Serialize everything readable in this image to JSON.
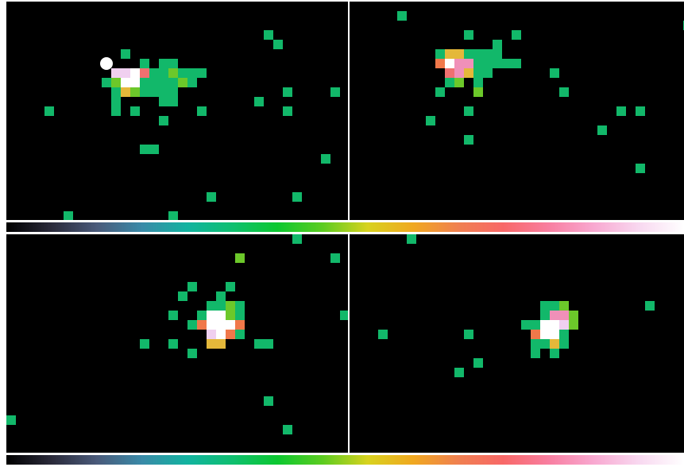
{
  "colormap": {
    "stops": [
      "#000000",
      "#2a2a3a",
      "#4a5a7a",
      "#3a8aa8",
      "#12b3a0",
      "#0fbf70",
      "#0cc830",
      "#5ccc20",
      "#d8d21f",
      "#f0a820",
      "#f08050",
      "#f86868",
      "#f87ea0",
      "#f8a8d0",
      "#f8d8f0",
      "#ffffff"
    ]
  },
  "palette": {
    "g": "#12b86a",
    "l": "#6cc82a",
    "y": "#e4b83a",
    "o": "#f0784a",
    "r": "#f07070",
    "p": "#f090b8",
    "k": "#f0d0f0",
    "w": "#ffffff"
  },
  "panels": [
    {
      "id": "top-left",
      "pixels": [
        [
          27,
          3,
          "g"
        ],
        [
          28,
          4,
          "g"
        ],
        [
          12,
          5,
          "g"
        ],
        [
          14,
          6,
          "g"
        ],
        [
          16,
          6,
          "g"
        ],
        [
          17,
          6,
          "g"
        ],
        [
          11,
          7,
          "k"
        ],
        [
          12,
          7,
          "k"
        ],
        [
          13,
          7,
          "w"
        ],
        [
          14,
          7,
          "r"
        ],
        [
          15,
          7,
          "g"
        ],
        [
          16,
          7,
          "g"
        ],
        [
          17,
          7,
          "l"
        ],
        [
          18,
          7,
          "g"
        ],
        [
          19,
          7,
          "g"
        ],
        [
          20,
          7,
          "g"
        ],
        [
          10,
          8,
          "g"
        ],
        [
          11,
          8,
          "l"
        ],
        [
          12,
          8,
          "w"
        ],
        [
          13,
          8,
          "w"
        ],
        [
          14,
          8,
          "g"
        ],
        [
          15,
          8,
          "g"
        ],
        [
          16,
          8,
          "g"
        ],
        [
          17,
          8,
          "g"
        ],
        [
          18,
          8,
          "l"
        ],
        [
          19,
          8,
          "g"
        ],
        [
          11,
          9,
          "g"
        ],
        [
          12,
          9,
          "y"
        ],
        [
          13,
          9,
          "l"
        ],
        [
          14,
          9,
          "g"
        ],
        [
          15,
          9,
          "g"
        ],
        [
          16,
          9,
          "g"
        ],
        [
          17,
          9,
          "g"
        ],
        [
          11,
          10,
          "g"
        ],
        [
          16,
          10,
          "g"
        ],
        [
          17,
          10,
          "g"
        ],
        [
          11,
          11,
          "g"
        ],
        [
          13,
          11,
          "g"
        ],
        [
          29,
          9,
          "g"
        ],
        [
          34,
          9,
          "g"
        ],
        [
          26,
          10,
          "g"
        ],
        [
          4,
          11,
          "g"
        ],
        [
          20,
          11,
          "g"
        ],
        [
          29,
          11,
          "g"
        ],
        [
          16,
          12,
          "g"
        ],
        [
          14,
          15,
          "g"
        ],
        [
          15,
          15,
          "g"
        ],
        [
          33,
          16,
          "g"
        ],
        [
          36,
          18,
          "g"
        ],
        [
          21,
          20,
          "g"
        ],
        [
          30,
          20,
          "g"
        ],
        [
          36,
          21,
          "g"
        ],
        [
          6,
          22,
          "g"
        ],
        [
          17,
          22,
          "g"
        ]
      ],
      "markers": [
        [
          10,
          6
        ]
      ]
    },
    {
      "id": "top-right",
      "pixels": [
        [
          5,
          1,
          "g"
        ],
        [
          35,
          2,
          "g"
        ],
        [
          12,
          3,
          "g"
        ],
        [
          17,
          3,
          "g"
        ],
        [
          15,
          4,
          "g"
        ],
        [
          9,
          5,
          "g"
        ],
        [
          10,
          5,
          "y"
        ],
        [
          11,
          5,
          "y"
        ],
        [
          12,
          5,
          "g"
        ],
        [
          13,
          5,
          "g"
        ],
        [
          14,
          5,
          "g"
        ],
        [
          15,
          5,
          "g"
        ],
        [
          9,
          6,
          "o"
        ],
        [
          10,
          6,
          "w"
        ],
        [
          11,
          6,
          "p"
        ],
        [
          12,
          6,
          "p"
        ],
        [
          13,
          6,
          "g"
        ],
        [
          14,
          6,
          "g"
        ],
        [
          15,
          6,
          "g"
        ],
        [
          16,
          6,
          "g"
        ],
        [
          17,
          6,
          "g"
        ],
        [
          10,
          7,
          "r"
        ],
        [
          11,
          7,
          "p"
        ],
        [
          12,
          7,
          "y"
        ],
        [
          13,
          7,
          "g"
        ],
        [
          14,
          7,
          "g"
        ],
        [
          10,
          8,
          "g"
        ],
        [
          11,
          8,
          "l"
        ],
        [
          13,
          8,
          "g"
        ],
        [
          9,
          9,
          "g"
        ],
        [
          13,
          9,
          "l"
        ],
        [
          21,
          7,
          "g"
        ],
        [
          22,
          9,
          "g"
        ],
        [
          12,
          11,
          "g"
        ],
        [
          28,
          11,
          "g"
        ],
        [
          30,
          11,
          "g"
        ],
        [
          8,
          12,
          "g"
        ],
        [
          26,
          13,
          "g"
        ],
        [
          12,
          14,
          "g"
        ],
        [
          30,
          17,
          "g"
        ]
      ],
      "markers": []
    },
    {
      "id": "bottom-left",
      "pixels": [
        [
          21,
          -1,
          "g"
        ],
        [
          30,
          0,
          "g"
        ],
        [
          24,
          2,
          "l"
        ],
        [
          34,
          2,
          "g"
        ],
        [
          19,
          5,
          "g"
        ],
        [
          23,
          5,
          "g"
        ],
        [
          18,
          6,
          "g"
        ],
        [
          22,
          6,
          "g"
        ],
        [
          21,
          7,
          "g"
        ],
        [
          22,
          7,
          "g"
        ],
        [
          23,
          7,
          "l"
        ],
        [
          24,
          7,
          "g"
        ],
        [
          17,
          8,
          "g"
        ],
        [
          20,
          8,
          "g"
        ],
        [
          21,
          8,
          "w"
        ],
        [
          22,
          8,
          "w"
        ],
        [
          23,
          8,
          "l"
        ],
        [
          24,
          8,
          "g"
        ],
        [
          35,
          8,
          "g"
        ],
        [
          19,
          9,
          "g"
        ],
        [
          20,
          9,
          "o"
        ],
        [
          21,
          9,
          "w"
        ],
        [
          22,
          9,
          "w"
        ],
        [
          23,
          9,
          "w"
        ],
        [
          24,
          9,
          "o"
        ],
        [
          21,
          10,
          "k"
        ],
        [
          22,
          10,
          "w"
        ],
        [
          23,
          10,
          "o"
        ],
        [
          24,
          10,
          "g"
        ],
        [
          14,
          11,
          "g"
        ],
        [
          17,
          11,
          "g"
        ],
        [
          21,
          11,
          "y"
        ],
        [
          22,
          11,
          "y"
        ],
        [
          26,
          11,
          "g"
        ],
        [
          27,
          11,
          "g"
        ],
        [
          19,
          12,
          "g"
        ],
        [
          27,
          17,
          "g"
        ],
        [
          0,
          19,
          "g"
        ],
        [
          29,
          20,
          "g"
        ]
      ],
      "markers": []
    },
    {
      "id": "bottom-right",
      "pixels": [
        [
          6,
          0,
          "g"
        ],
        [
          20,
          7,
          "g"
        ],
        [
          21,
          7,
          "g"
        ],
        [
          22,
          7,
          "l"
        ],
        [
          31,
          7,
          "g"
        ],
        [
          20,
          8,
          "g"
        ],
        [
          21,
          8,
          "p"
        ],
        [
          22,
          8,
          "p"
        ],
        [
          23,
          8,
          "l"
        ],
        [
          18,
          9,
          "g"
        ],
        [
          19,
          9,
          "g"
        ],
        [
          20,
          9,
          "w"
        ],
        [
          21,
          9,
          "w"
        ],
        [
          22,
          9,
          "k"
        ],
        [
          23,
          9,
          "l"
        ],
        [
          19,
          10,
          "o"
        ],
        [
          20,
          10,
          "w"
        ],
        [
          21,
          10,
          "w"
        ],
        [
          22,
          10,
          "g"
        ],
        [
          3,
          10,
          "g"
        ],
        [
          12,
          10,
          "g"
        ],
        [
          19,
          11,
          "g"
        ],
        [
          20,
          11,
          "g"
        ],
        [
          21,
          11,
          "y"
        ],
        [
          22,
          11,
          "g"
        ],
        [
          19,
          12,
          "g"
        ],
        [
          21,
          12,
          "g"
        ],
        [
          13,
          13,
          "g"
        ],
        [
          11,
          14,
          "g"
        ]
      ],
      "markers": []
    }
  ]
}
